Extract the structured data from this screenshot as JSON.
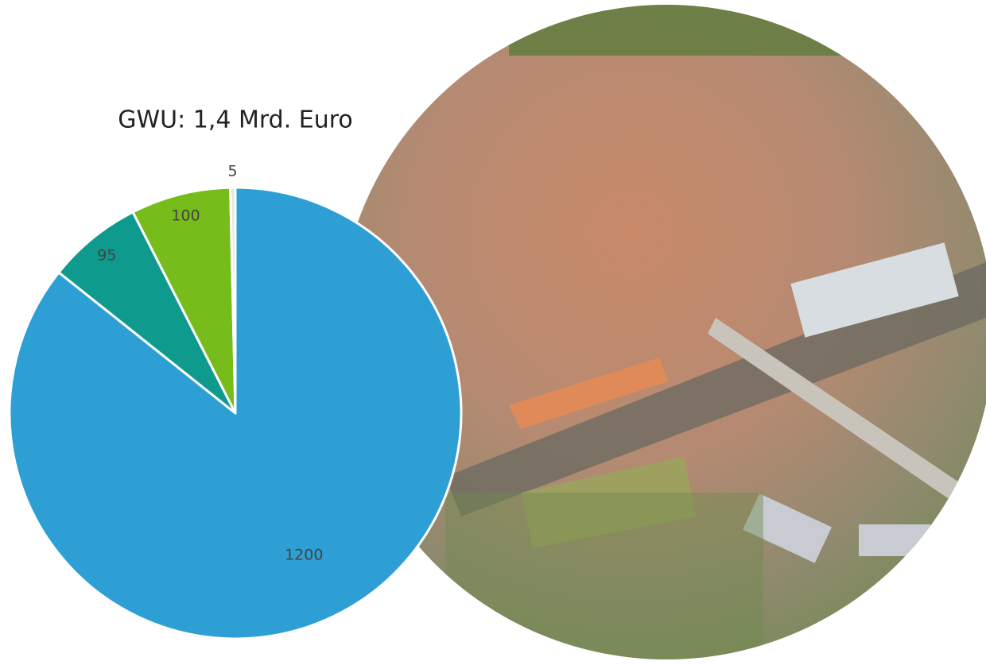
{
  "chart_data": {
    "type": "pie",
    "title": "GWU: 1,4 Mrd. Euro",
    "categories": [
      null,
      null,
      null,
      null
    ],
    "values": [
      1200,
      95,
      100,
      5
    ],
    "colors": [
      "#2e9fd4",
      "#0e9a8c",
      "#76bc1a",
      "#e6e6e6"
    ]
  }
}
